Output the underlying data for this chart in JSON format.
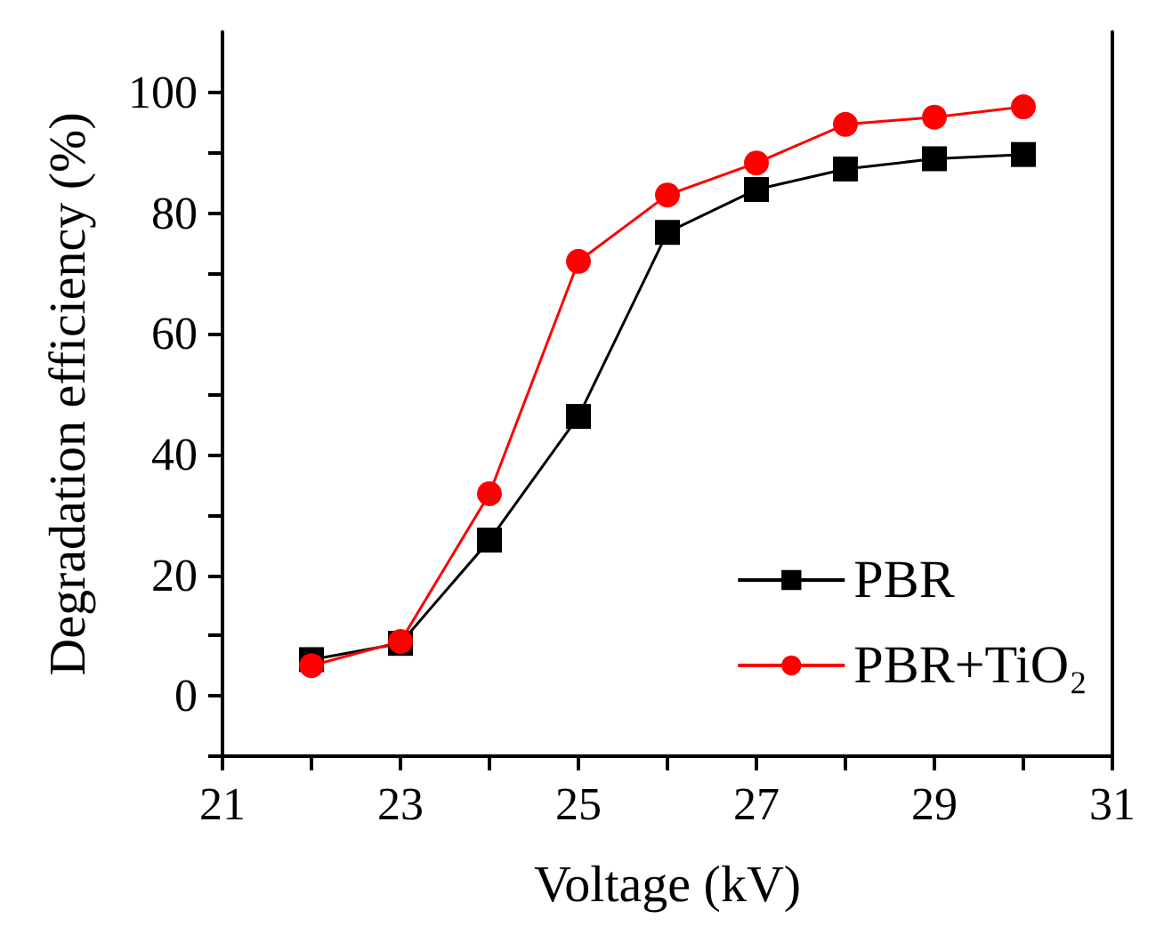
{
  "chart_data": {
    "type": "line",
    "xlabel": "Voltage (kV)",
    "ylabel": "Degradation efficiency (%)",
    "x": [
      22,
      23,
      24,
      25,
      26,
      27,
      28,
      29,
      30
    ],
    "series": [
      {
        "name": "PBR",
        "color": "#000000",
        "marker": "square",
        "values": [
          6,
          8.7,
          25.8,
          46.3,
          76.8,
          83.9,
          87.3,
          89,
          89.7
        ]
      },
      {
        "name": "PBR+TiO₂",
        "color": "#ff0000",
        "marker": "circle",
        "values": [
          5,
          9,
          33.5,
          72,
          83,
          88.3,
          94.7,
          95.9,
          97.6
        ]
      }
    ],
    "xlim": [
      21,
      31
    ],
    "xticks": [
      21,
      {
        "value": 22,
        "label": null
      },
      23,
      {
        "value": 24,
        "label": null
      },
      25,
      {
        "value": 26,
        "label": null
      },
      27,
      {
        "value": 28,
        "label": null
      },
      29,
      {
        "value": 30,
        "label": null
      },
      31
    ],
    "ylim": [
      -10,
      110
    ],
    "yticks": [
      {
        "value": -10,
        "label": null
      },
      0,
      {
        "value": 10,
        "label": null
      },
      20,
      {
        "value": 30,
        "label": null
      },
      40,
      {
        "value": 50,
        "label": null
      },
      60,
      {
        "value": 70,
        "label": null
      },
      80,
      {
        "value": 90,
        "label": null
      },
      100
    ],
    "grid": false,
    "legend": "bottom right",
    "line_style": "solid"
  }
}
